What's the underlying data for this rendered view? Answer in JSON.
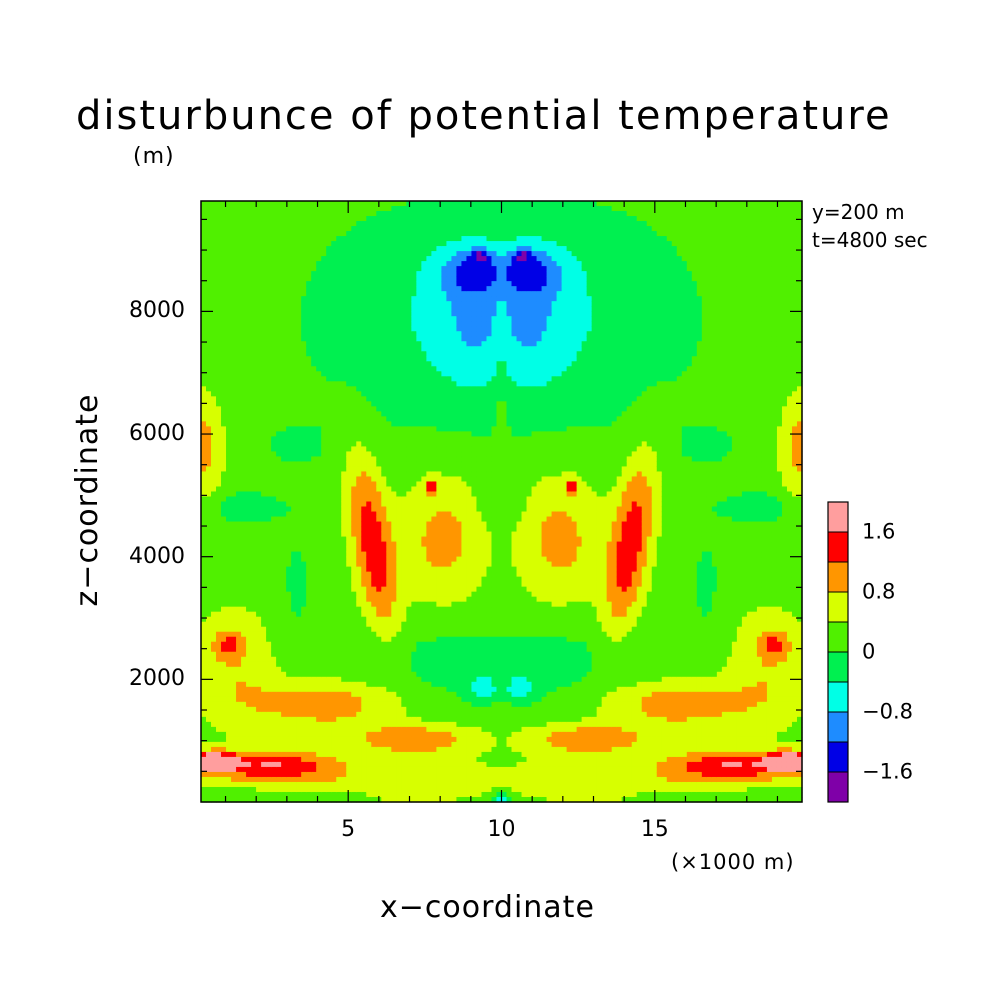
{
  "chart_data": {
    "type": "heatmap",
    "title": "disturbunce of potential temperature",
    "title_unit": "(m)",
    "xlabel": "x−coordinate",
    "ylabel": "z−coordinate",
    "x_unit": "(×1000 m)",
    "annotations": [
      "y=200 m",
      "t=4800 sec"
    ],
    "xlim": [
      0.2,
      19.8
    ],
    "ylim": [
      0,
      9800
    ],
    "x_ticks": [
      {
        "value": 5,
        "label": "5"
      },
      {
        "value": 10,
        "label": "10"
      },
      {
        "value": 15,
        "label": "15"
      }
    ],
    "y_ticks": [
      {
        "value": 2000,
        "label": "2000"
      },
      {
        "value": 4000,
        "label": "4000"
      },
      {
        "value": 6000,
        "label": "6000"
      },
      {
        "value": 8000,
        "label": "8000"
      }
    ],
    "colorbar": {
      "levels": [
        -2.0,
        -1.6,
        -1.2,
        -0.8,
        -0.4,
        0.0,
        0.4,
        0.8,
        1.2,
        1.6,
        2.0
      ],
      "colors": [
        "#7f00a8",
        "#0000e6",
        "#1e8cff",
        "#00ffe6",
        "#00f050",
        "#50f000",
        "#d7ff00",
        "#ff9600",
        "#ff0000",
        "#ff9e9e"
      ],
      "labels": [
        {
          "value": -1.6,
          "label": "−1.6"
        },
        {
          "value": -0.8,
          "label": "−0.8"
        },
        {
          "value": 0.0,
          "label": "0"
        },
        {
          "value": 0.8,
          "label": "0.8"
        },
        {
          "value": 1.6,
          "label": "1.6"
        }
      ]
    },
    "field": {
      "symmetry": "mirror about x=10",
      "background": 0.2,
      "blobs": [
        {
          "x": 0.5,
          "z": 650,
          "sx": 0.55,
          "sz": 110,
          "amp": 2.0
        },
        {
          "x": 2.5,
          "z": 600,
          "sx": 1.5,
          "sz": 180,
          "amp": 1.25
        },
        {
          "x": 6.5,
          "z": 300,
          "sx": 4.0,
          "sz": 280,
          "amp": 0.45
        },
        {
          "x": 4.2,
          "z": 1600,
          "sx": 1.6,
          "sz": 280,
          "amp": 0.9
        },
        {
          "x": 7.2,
          "z": 1020,
          "sx": 1.5,
          "sz": 180,
          "amp": 0.9
        },
        {
          "x": 1.3,
          "z": 2200,
          "sx": 1.0,
          "sz": 700,
          "amp": 0.55
        },
        {
          "x": 1.1,
          "z": 2580,
          "sx": 0.35,
          "sz": 160,
          "amp": 0.7
        },
        {
          "x": 5.8,
          "z": 4200,
          "sx": 0.45,
          "sz": 1100,
          "amp": 1.25,
          "angle": -0.35
        },
        {
          "x": 8.1,
          "z": 4300,
          "sx": 1.0,
          "sz": 750,
          "amp": 0.75
        },
        {
          "x": 7.7,
          "z": 5150,
          "sx": 0.15,
          "sz": 80,
          "amp": 1.0
        },
        {
          "x": 0.3,
          "z": 5800,
          "sx": 0.45,
          "sz": 600,
          "amp": 0.75
        },
        {
          "x": 8.3,
          "z": 2300,
          "sx": 2.4,
          "sz": 500,
          "amp": -0.35
        },
        {
          "x": 9.4,
          "z": 1850,
          "sx": 0.35,
          "sz": 150,
          "amp": -0.7
        },
        {
          "x": 3.3,
          "z": 3500,
          "sx": 0.5,
          "sz": 900,
          "amp": -0.25
        },
        {
          "x": 1.6,
          "z": 4800,
          "sx": 0.9,
          "sz": 200,
          "amp": -0.4
        },
        {
          "x": 3.2,
          "z": 5800,
          "sx": 1.2,
          "sz": 350,
          "amp": -0.2
        },
        {
          "x": 9.7,
          "z": 4900,
          "sx": 0.3,
          "sz": 250,
          "amp": -0.3
        },
        {
          "x": 8.2,
          "z": 7900,
          "sx": 3.2,
          "sz": 1300,
          "amp": -0.6
        },
        {
          "x": 9.2,
          "z": 7950,
          "sx": 0.9,
          "sz": 850,
          "amp": -0.55
        },
        {
          "x": 9.2,
          "z": 8650,
          "sx": 0.85,
          "sz": 260,
          "amp": -0.85
        },
        {
          "x": 9.3,
          "z": 8900,
          "sx": 0.2,
          "sz": 80,
          "amp": -0.8
        },
        {
          "x": 10.0,
          "z": 6500,
          "sx": 0.15,
          "sz": 600,
          "amp": 0.25
        },
        {
          "x": 9.95,
          "z": 50,
          "sx": 0.2,
          "sz": 80,
          "amp": -0.8
        },
        {
          "x": 0.1,
          "z": 120,
          "sx": 6.0,
          "sz": 80,
          "amp": -0.25
        }
      ]
    }
  }
}
